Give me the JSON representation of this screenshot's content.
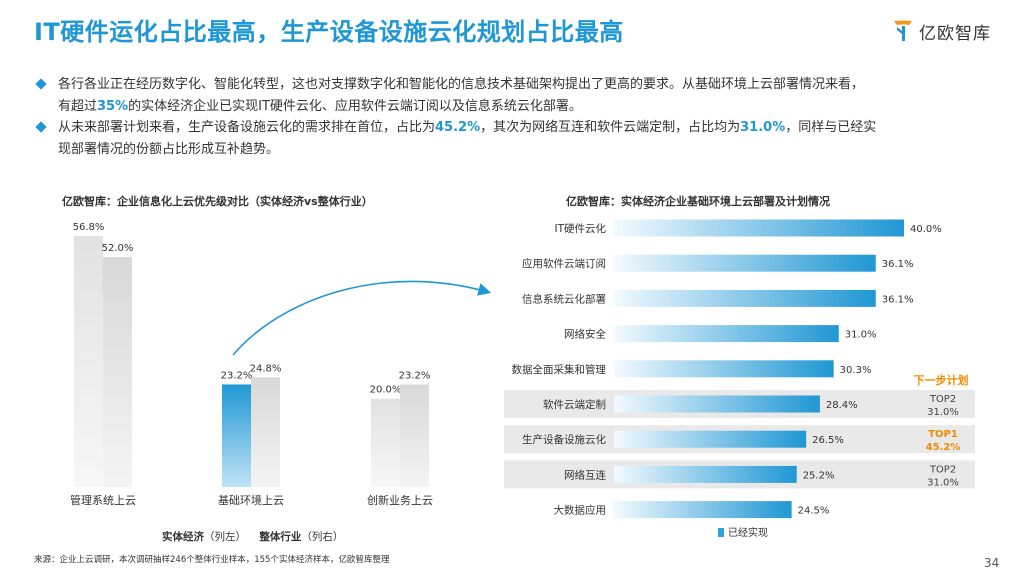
{
  "header": {
    "title": "IT硬件运化占比最高，生产设备设施云化规划占比最高",
    "logo_text": "亿欧智库"
  },
  "bullets": [
    {
      "p1": "各行各业正在经历数字化、智能化转型，这也对支撑数字化和智能化的信息技术基础架构提出了更高的要求。从基础环境上云部署情况来看，",
      "p2": "有超过",
      "hl1": "35%",
      "p3": "的实体经济企业已实现IT硬件云化、应用软件云端订阅以及信息系统云化部署。"
    },
    {
      "p1": "从未来部署计划来看，生产设备设施云化的需求排在首位，占比为",
      "hl1": "45.2%",
      "p2": "，其次为网络互连和软件云端定制，占比均为",
      "hl2": "31.0%",
      "p3": "，同样与已经实",
      "p4": "现部署情况的份额占比形成互补趋势。"
    }
  ],
  "left_chart": {
    "subtitle": "亿欧智库：企业信息化上云优先级对比（实体经济vs整体行业）",
    "legend": {
      "s1_name": "实体经济",
      "s1_note": "（列左）",
      "s2_name": "整体行业",
      "s2_note": "（列右）"
    }
  },
  "right_chart": {
    "subtitle": "亿欧智库：实体经济企业基础环境上云部署及计划情况",
    "next_plan_label": "下一步计划",
    "legend_label": "已经实现"
  },
  "footer": {
    "source": "来源：企业上云调研，本次调研抽样246个整体行业样本，155个实体经济样本，亿欧智库整理",
    "page": "34"
  },
  "colors": {
    "accent": "#1f97d4",
    "orange": "#f08c00",
    "grey_bar": "#d6d6d6",
    "highlight_bar": "#2ba3de",
    "plan_box": "#e9e9e9"
  },
  "chart_data": [
    {
      "type": "bar",
      "title": "亿欧智库：企业信息化上云优先级对比（实体经济vs整体行业）",
      "categories": [
        "管理系统上云",
        "基础环境上云",
        "创新业务上云"
      ],
      "series": [
        {
          "name": "实体经济",
          "values": [
            56.8,
            23.2,
            20.0
          ]
        },
        {
          "name": "整体行业",
          "values": [
            52.0,
            24.8,
            23.2
          ]
        }
      ],
      "value_labels": [
        [
          "56.8%",
          "23.2%",
          "20.0%"
        ],
        [
          "52.0%",
          "24.8%",
          "23.2%"
        ]
      ],
      "highlight_category": "基础环境上云",
      "xlabel": "",
      "ylabel": "",
      "ylim": [
        0,
        60
      ],
      "grid": false
    },
    {
      "type": "bar",
      "orientation": "horizontal",
      "title": "亿欧智库：实体经济企业基础环境上云部署及计划情况",
      "categories": [
        "IT硬件云化",
        "应用软件云端订阅",
        "信息系统云化部署",
        "网络安全",
        "数据全面采集和管理",
        "软件云端定制",
        "生产设备设施云化",
        "网络互连",
        "大数据应用"
      ],
      "series": [
        {
          "name": "已经实现",
          "values": [
            40.0,
            36.1,
            36.1,
            31.0,
            30.3,
            28.4,
            26.5,
            25.2,
            24.5
          ]
        }
      ],
      "value_labels": [
        "40.0%",
        "36.1%",
        "36.1%",
        "31.0%",
        "30.3%",
        "28.4%",
        "26.5%",
        "25.2%",
        "24.5%"
      ],
      "next_plan": [
        {
          "category": "软件云端定制",
          "rank": "TOP2",
          "value": 31.0,
          "label": "31.0%"
        },
        {
          "category": "生产设备设施云化",
          "rank": "TOP1",
          "value": 45.2,
          "label": "45.2%"
        },
        {
          "category": "网络互连",
          "rank": "TOP2",
          "value": 31.0,
          "label": "31.0%"
        }
      ],
      "xlim": [
        0,
        40
      ],
      "grid": false,
      "legend": "bottom"
    }
  ]
}
